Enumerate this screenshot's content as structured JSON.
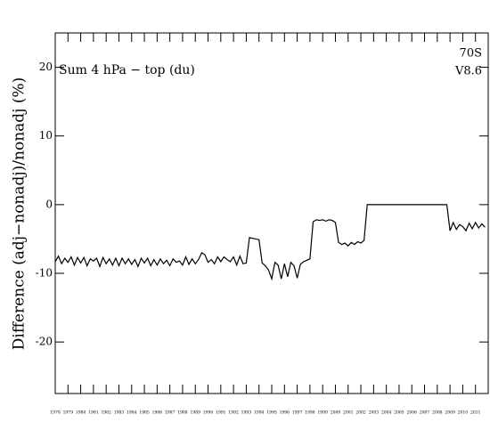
{
  "chart_data": {
    "type": "line",
    "ylabel": "Difference (adj−nonadj)/nonadj (%)",
    "annotations": [
      "Sum 4 hPa − top (du)",
      "70S",
      "V8.6"
    ],
    "xlim": [
      1978,
      2012
    ],
    "xticks": [
      1978,
      1979,
      1980,
      1981,
      1982,
      1983,
      1984,
      1985,
      1986,
      1987,
      1988,
      1989,
      1990,
      1991,
      1992,
      1993,
      1994,
      1995,
      1996,
      1997,
      1998,
      1999,
      2000,
      2001,
      2002,
      2003,
      2004,
      2005,
      2006,
      2007,
      2008,
      2009,
      2010,
      2011
    ],
    "ylim": [
      -27.5,
      25
    ],
    "yticks": [
      20,
      10,
      0,
      -10,
      -20
    ],
    "series": [
      {
        "name": "Sum 4 hPa − top (du)",
        "color": "#000000",
        "x": [
          1978,
          1978.25,
          1978.5,
          1978.75,
          1979,
          1979.25,
          1979.5,
          1979.75,
          1980,
          1980.25,
          1980.5,
          1980.75,
          1981,
          1981.25,
          1981.5,
          1981.75,
          1982,
          1982.25,
          1982.5,
          1982.75,
          1983,
          1983.25,
          1983.5,
          1983.75,
          1984,
          1984.25,
          1984.5,
          1984.75,
          1985,
          1985.25,
          1985.5,
          1985.75,
          1986,
          1986.25,
          1986.5,
          1986.75,
          1987,
          1987.25,
          1987.5,
          1987.75,
          1988,
          1988.25,
          1988.5,
          1988.75,
          1989,
          1989.25,
          1989.5,
          1989.75,
          1990,
          1990.25,
          1990.5,
          1990.75,
          1991,
          1991.25,
          1991.5,
          1991.75,
          1992,
          1992.25,
          1992.5,
          1992.75,
          1993,
          1993.25,
          1993.5,
          1993.75,
          1994,
          1994.25,
          1994.5,
          1994.75,
          1995,
          1995.25,
          1995.5,
          1995.75,
          1996,
          1996.25,
          1996.5,
          1996.75,
          1997,
          1997.25,
          1997.5,
          1997.75,
          1998,
          1998.25,
          1998.5,
          1998.75,
          1999,
          1999.25,
          1999.5,
          1999.75,
          2000,
          2000.25,
          2000.5,
          2000.75,
          2001,
          2001.25,
          2001.5,
          2001.75,
          2002,
          2002.25,
          2002.5,
          2002.75,
          2003,
          2003.25,
          2003.5,
          2003.75,
          2004,
          2004.25,
          2004.5,
          2004.75,
          2005,
          2005.25,
          2005.5,
          2005.75,
          2006,
          2006.25,
          2006.5,
          2006.75,
          2007,
          2007.25,
          2007.5,
          2007.75,
          2008,
          2008.25,
          2008.5,
          2008.75,
          2009,
          2009.25,
          2009.5,
          2009.75,
          2010,
          2010.25,
          2010.5,
          2010.75,
          2011,
          2011.25,
          2011.5,
          2011.75
        ],
        "values": [
          -8.3,
          -7.5,
          -8.6,
          -7.8,
          -8.4,
          -7.6,
          -8.8,
          -7.7,
          -8.5,
          -7.7,
          -8.9,
          -7.9,
          -8.2,
          -7.8,
          -9.0,
          -7.7,
          -8.6,
          -7.9,
          -8.8,
          -7.8,
          -8.9,
          -7.8,
          -8.6,
          -7.9,
          -8.7,
          -8.0,
          -9.0,
          -7.8,
          -8.5,
          -7.8,
          -8.9,
          -8.0,
          -8.8,
          -7.9,
          -8.6,
          -8.1,
          -8.9,
          -7.9,
          -8.4,
          -8.2,
          -8.8,
          -7.6,
          -8.7,
          -7.9,
          -8.6,
          -8.0,
          -7.0,
          -7.3,
          -8.4,
          -8.0,
          -8.6,
          -7.6,
          -8.3,
          -7.6,
          -8.0,
          -8.3,
          -7.6,
          -8.8,
          -7.5,
          -8.6,
          -8.5,
          -4.8,
          -4.9,
          -5.0,
          -5.1,
          -8.5,
          -8.9,
          -9.5,
          -10.8,
          -8.4,
          -8.8,
          -10.8,
          -8.6,
          -10.5,
          -8.4,
          -8.9,
          -10.7,
          -8.7,
          -8.3,
          -8.1,
          -7.9,
          -2.5,
          -2.2,
          -2.3,
          -2.2,
          -2.4,
          -2.2,
          -2.3,
          -2.6,
          -5.5,
          -5.8,
          -5.6,
          -6.0,
          -5.5,
          -5.8,
          -5.4,
          -5.6,
          -5.2,
          0,
          0,
          0,
          0,
          0,
          0,
          0,
          0,
          0,
          0,
          0,
          0,
          0,
          0,
          0,
          0,
          0,
          0,
          0,
          0,
          0,
          0,
          0,
          0,
          0,
          0,
          -3.8,
          -2.6,
          -3.6,
          -2.9,
          -3.2,
          -3.8,
          -2.7,
          -3.5,
          -2.6,
          -3.4,
          -2.8,
          -3.3
        ]
      }
    ]
  }
}
